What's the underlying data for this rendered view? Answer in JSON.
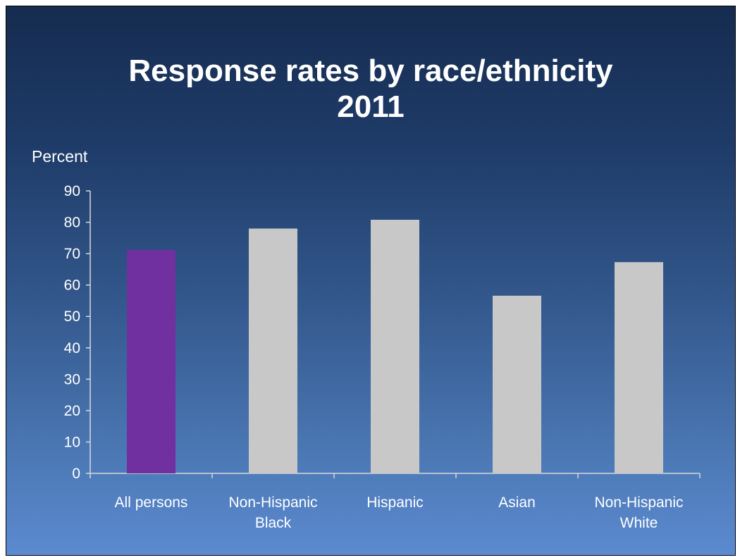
{
  "slide": {
    "title_line1": "Response rates by race/ethnicity",
    "title_line2": "2011"
  },
  "chart_data": {
    "type": "bar",
    "title": "Response rates by race/ethnicity 2011",
    "ylabel": "Percent",
    "xlabel": "",
    "categories": [
      [
        "All persons"
      ],
      [
        "Non-Hispanic",
        "Black"
      ],
      [
        "Hispanic"
      ],
      [
        "Asian"
      ],
      [
        "Non-Hispanic",
        "White"
      ]
    ],
    "values": [
      71.2,
      78.0,
      80.8,
      56.6,
      67.3
    ],
    "bar_colors": [
      "#7030a0",
      "#c8c8c8",
      "#c8c8c8",
      "#c8c8c8",
      "#c8c8c8"
    ],
    "ylim": [
      0,
      90
    ],
    "yticks": [
      0,
      10,
      20,
      30,
      40,
      50,
      60,
      70,
      80,
      90
    ],
    "grid": false,
    "legend": "none"
  }
}
